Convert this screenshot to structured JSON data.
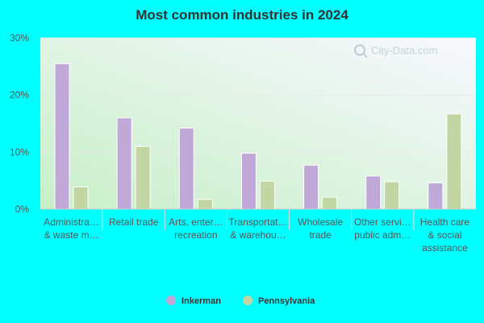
{
  "chart_data": {
    "type": "bar",
    "title": "Most common industries in 2024",
    "xlabel": "",
    "ylabel": "",
    "ylim": [
      0,
      30
    ],
    "yticks": [
      "0%",
      "10%",
      "20%",
      "30%"
    ],
    "ytick_values": [
      0,
      10,
      20,
      30
    ],
    "grid": true,
    "legend_position": "bottom",
    "categories": [
      [
        "Administra…",
        "& waste m…"
      ],
      [
        "Retail trade"
      ],
      [
        "Arts, enter…",
        "recreation"
      ],
      [
        "Transportat…",
        "& warehou…"
      ],
      [
        "Wholesale",
        "trade"
      ],
      [
        "Other servi…",
        "public adm…"
      ],
      [
        "Health care",
        "& social",
        "assistance"
      ]
    ],
    "series": [
      {
        "name": "Inkerman",
        "color": "#c0a8d8",
        "values": [
          25.5,
          16.0,
          14.2,
          9.8,
          7.7,
          5.8,
          4.6
        ]
      },
      {
        "name": "Pennsylvania",
        "color": "#c2d6a4",
        "values": [
          3.9,
          11.0,
          1.7,
          4.9,
          2.1,
          4.8,
          16.7
        ]
      }
    ]
  }
}
